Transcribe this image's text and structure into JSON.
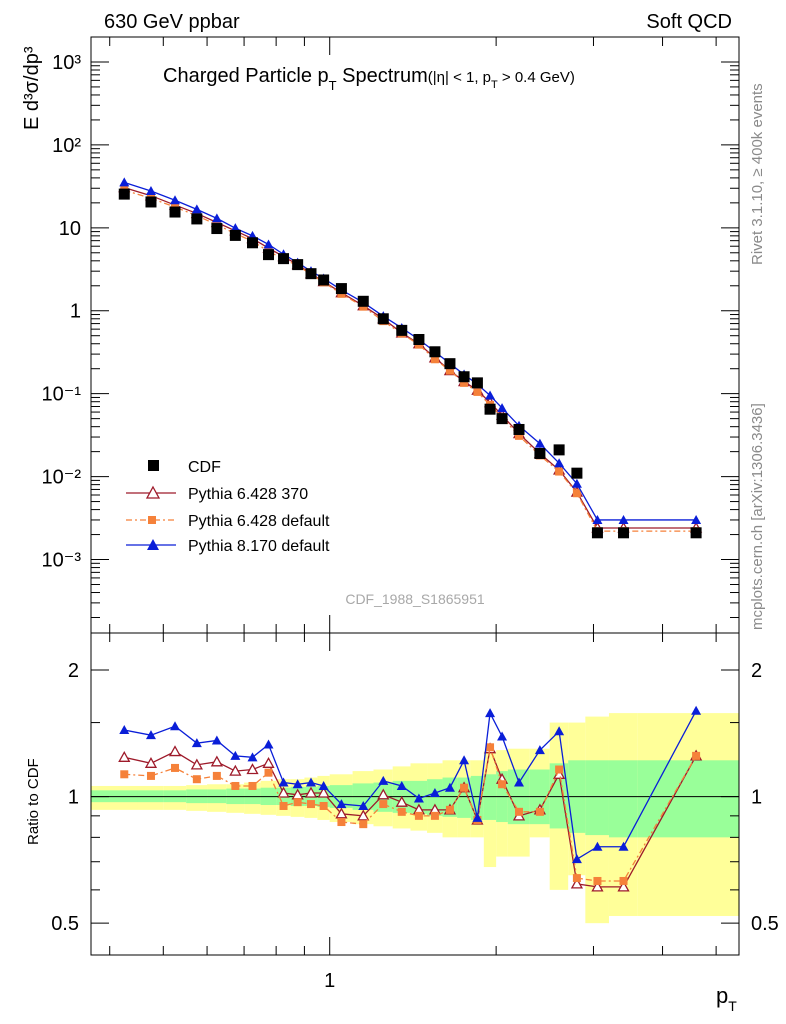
{
  "header": {
    "left": "630 GeV ppbar",
    "right": "Soft QCD"
  },
  "side_labels": {
    "rivet": "Rivet 3.1.10, ≥ 400k events",
    "mcplots": "mcplots.cern.ch [arXiv:1306.3436]"
  },
  "watermark": "CDF_1988_S1865951",
  "chart_data": [
    {
      "type": "scatter",
      "title": "Charged Particle p_T Spectrum",
      "title_main": "Charged Particle p",
      "title_sub": "T",
      "title_main2": " Spectrum",
      "title_cut": "(|η| < 1, p",
      "title_cut_sub": "T",
      "title_cut_end": " > 0.4 GeV)",
      "ylabel": "E d³σ/dp³",
      "xlabel": "p_T",
      "xlabel_main": "p",
      "xlabel_sub": "T",
      "xscale": "log",
      "yscale": "log",
      "xlim": [
        0.37,
        5.5
      ],
      "ylim": [
        0.00013,
        2000
      ],
      "y_tick_labels": [
        "10⁻³",
        "10⁻²",
        "10⁻¹",
        "1",
        "10",
        "10²",
        "10³"
      ],
      "x_tick_labels": [
        "1"
      ],
      "legend_position": "bottom-left",
      "x": [
        0.425,
        0.475,
        0.525,
        0.575,
        0.625,
        0.675,
        0.725,
        0.775,
        0.825,
        0.875,
        0.925,
        0.975,
        1.05,
        1.15,
        1.25,
        1.35,
        1.45,
        1.55,
        1.65,
        1.75,
        1.85,
        1.95,
        2.05,
        2.2,
        2.4,
        2.6,
        2.8,
        3.05,
        3.4,
        4.6
      ],
      "series": [
        {
          "name": "CDF",
          "color": "#000000",
          "marker": "square",
          "values": [
            25.5,
            20.5,
            15.5,
            12.8,
            9.8,
            8.1,
            6.6,
            4.75,
            4.25,
            3.6,
            2.8,
            2.35,
            1.85,
            1.3,
            0.8,
            0.58,
            0.45,
            0.32,
            0.23,
            0.16,
            0.135,
            0.065,
            0.05,
            0.037,
            0.019,
            0.021,
            0.011,
            0.0021,
            0.0021,
            0.0021
          ]
        },
        {
          "name": "Pythia 6.428 370",
          "color": "#9e1a2a",
          "marker": "open-triangle",
          "values": [
            30.5,
            24.4,
            18.8,
            14.9,
            11.6,
            9.2,
            7.4,
            5.7,
            4.5,
            3.6,
            2.8,
            2.25,
            1.65,
            1.15,
            0.8,
            0.54,
            0.4,
            0.27,
            0.19,
            0.14,
            0.11,
            0.078,
            0.055,
            0.033,
            0.019,
            0.012,
            0.0065,
            0.0024,
            0.0024,
            0.0024
          ]
        },
        {
          "name": "Pythia 6.428 default",
          "color": "#f5813a",
          "marker": "filled-square",
          "values": [
            28.5,
            22.7,
            17.8,
            14.0,
            10.9,
            8.5,
            6.9,
            5.2,
            4.2,
            3.5,
            2.75,
            2.2,
            1.6,
            1.12,
            0.75,
            0.53,
            0.39,
            0.26,
            0.19,
            0.135,
            0.105,
            0.073,
            0.052,
            0.031,
            0.018,
            0.0115,
            0.0063,
            0.0022,
            0.0022,
            0.0022
          ]
        },
        {
          "name": "Pythia 8.170 default",
          "color": "#0a1ed8",
          "marker": "filled-triangle",
          "values": [
            35.3,
            27.8,
            21.5,
            16.7,
            13.0,
            9.9,
            8.0,
            6.3,
            4.8,
            3.8,
            3.0,
            2.45,
            1.78,
            1.26,
            0.86,
            0.62,
            0.45,
            0.32,
            0.23,
            0.17,
            0.13,
            0.095,
            0.067,
            0.041,
            0.025,
            0.0145,
            0.0082,
            0.003,
            0.003,
            0.003
          ]
        }
      ]
    },
    {
      "type": "scatter",
      "ylabel": "Ratio to CDF",
      "xscale": "log",
      "yscale": "log",
      "xlim": [
        0.37,
        5.5
      ],
      "ylim": [
        0.42,
        2.45
      ],
      "y_tick_labels": [
        "0.5",
        "1",
        "2"
      ],
      "reference_line": 1,
      "x": [
        0.425,
        0.475,
        0.525,
        0.575,
        0.625,
        0.675,
        0.725,
        0.775,
        0.825,
        0.875,
        0.925,
        0.975,
        1.05,
        1.15,
        1.25,
        1.35,
        1.45,
        1.55,
        1.65,
        1.75,
        1.85,
        1.95,
        2.05,
        2.2,
        2.4,
        2.6,
        2.8,
        3.05,
        3.4,
        4.6
      ],
      "band_edges": [
        0.37,
        0.45,
        0.5,
        0.55,
        0.6,
        0.65,
        0.7,
        0.75,
        0.8,
        0.85,
        0.9,
        0.95,
        1.0,
        1.1,
        1.2,
        1.3,
        1.4,
        1.5,
        1.6,
        1.7,
        1.8,
        1.9,
        2.0,
        2.1,
        2.3,
        2.5,
        2.7,
        2.9,
        3.2,
        3.6,
        5.5
      ],
      "stat_band": [
        [
          0.97,
          1.035
        ],
        [
          0.97,
          1.035
        ],
        [
          0.97,
          1.035
        ],
        [
          0.965,
          1.04
        ],
        [
          0.965,
          1.04
        ],
        [
          0.96,
          1.045
        ],
        [
          0.96,
          1.045
        ],
        [
          0.955,
          1.05
        ],
        [
          0.955,
          1.05
        ],
        [
          0.95,
          1.055
        ],
        [
          0.95,
          1.055
        ],
        [
          0.945,
          1.06
        ],
        [
          0.94,
          1.065
        ],
        [
          0.93,
          1.075
        ],
        [
          0.92,
          1.08
        ],
        [
          0.915,
          1.09
        ],
        [
          0.91,
          1.09
        ],
        [
          0.9,
          1.1
        ],
        [
          0.895,
          1.11
        ],
        [
          0.89,
          1.11
        ],
        [
          0.88,
          1.12
        ],
        [
          0.88,
          1.13
        ],
        [
          0.87,
          1.15
        ],
        [
          0.86,
          1.16
        ],
        [
          0.86,
          1.16
        ],
        [
          0.84,
          1.2
        ],
        [
          0.82,
          1.22
        ],
        [
          0.81,
          1.22
        ],
        [
          0.8,
          1.22
        ],
        [
          0.8,
          1.22
        ]
      ],
      "syst_band": [
        [
          0.93,
          1.06
        ],
        [
          0.93,
          1.06
        ],
        [
          0.93,
          1.06
        ],
        [
          0.925,
          1.065
        ],
        [
          0.92,
          1.07
        ],
        [
          0.915,
          1.07
        ],
        [
          0.91,
          1.08
        ],
        [
          0.905,
          1.09
        ],
        [
          0.9,
          1.1
        ],
        [
          0.895,
          1.1
        ],
        [
          0.89,
          1.11
        ],
        [
          0.88,
          1.12
        ],
        [
          0.87,
          1.13
        ],
        [
          0.86,
          1.15
        ],
        [
          0.85,
          1.16
        ],
        [
          0.84,
          1.18
        ],
        [
          0.83,
          1.2
        ],
        [
          0.82,
          1.2
        ],
        [
          0.8,
          1.22
        ],
        [
          0.8,
          1.22
        ],
        [
          0.8,
          1.22
        ],
        [
          0.68,
          1.28
        ],
        [
          0.72,
          1.29
        ],
        [
          0.72,
          1.3
        ],
        [
          0.8,
          1.3
        ],
        [
          0.6,
          1.5
        ],
        [
          0.65,
          1.5
        ],
        [
          0.5,
          1.55
        ],
        [
          0.52,
          1.58
        ],
        [
          0.52,
          1.58
        ]
      ],
      "series": [
        {
          "name": "Pythia 6.428 370",
          "color": "#9e1a2a",
          "marker": "open-triangle",
          "values": [
            1.24,
            1.2,
            1.28,
            1.19,
            1.21,
            1.15,
            1.16,
            1.2,
            1.02,
            1.01,
            1.02,
            1.02,
            0.91,
            0.9,
            1.01,
            0.97,
            0.93,
            0.93,
            0.93,
            1.05,
            0.88,
            1.3,
            1.1,
            0.9,
            0.93,
            1.13,
            0.62,
            0.61,
            0.61,
            1.25
          ]
        },
        {
          "name": "Pythia 6.428 default",
          "color": "#f5813a",
          "marker": "filled-square",
          "values": [
            1.13,
            1.12,
            1.17,
            1.1,
            1.12,
            1.06,
            1.06,
            1.14,
            0.95,
            0.97,
            0.96,
            0.95,
            0.87,
            0.86,
            0.96,
            0.92,
            0.9,
            0.9,
            0.93,
            1.05,
            0.88,
            1.31,
            1.07,
            0.92,
            0.92,
            1.16,
            0.64,
            0.63,
            0.63,
            1.25
          ]
        },
        {
          "name": "Pythia 8.170 default",
          "color": "#0a1ed8",
          "marker": "filled-triangle",
          "values": [
            1.44,
            1.4,
            1.47,
            1.34,
            1.36,
            1.25,
            1.24,
            1.33,
            1.08,
            1.07,
            1.08,
            1.06,
            0.96,
            0.95,
            1.09,
            1.06,
            0.99,
            1.02,
            1.05,
            1.22,
            0.89,
            1.58,
            1.39,
            1.08,
            1.29,
            1.43,
            0.71,
            0.76,
            0.76,
            1.6
          ]
        }
      ]
    }
  ]
}
